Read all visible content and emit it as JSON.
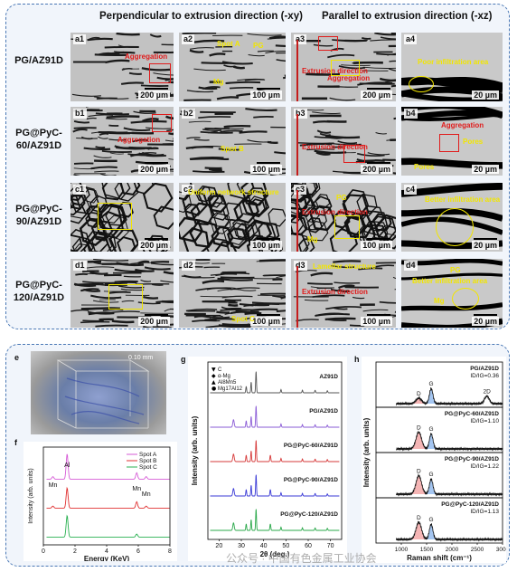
{
  "headers": {
    "left": "Perpendicular to extrusion direction (-xy)",
    "right": "Parallel to extrusion direction (-xz)"
  },
  "rows": [
    {
      "label": "PG/AZ91D"
    },
    {
      "label": "PG@PyC-60/AZ91D"
    },
    {
      "label": "PG@PyC-90/AZ91D"
    },
    {
      "label": "PG@PyC-120/AZ91D"
    }
  ],
  "tiles": [
    [
      "a1",
      "a2",
      "a3",
      "a4"
    ],
    [
      "b1",
      "b2",
      "b3",
      "b4"
    ],
    [
      "c1",
      "c2",
      "c3",
      "c4"
    ],
    [
      "d1",
      "d2",
      "d3",
      "d4"
    ]
  ],
  "scalebars": {
    "s200": "200 µm",
    "s100": "100 µm",
    "s20": "20 µm"
  },
  "annotations": {
    "aggregation": "Aggregation",
    "spot_a": "Spot A",
    "spot_b": "Spot B",
    "spot_c": "Spot C",
    "pg": "PG",
    "mg": "Mg",
    "extrusion_direction": "Extrusion direction",
    "poor_infiltration": "Poor infiltration area",
    "pores": "Pores",
    "uniform_network": "Uniform network structure",
    "better_infiltration": "Better infiltration area",
    "lamellar": "Lamellar structure"
  },
  "panel_e": {
    "label": "e",
    "scale": "0.10 mm"
  },
  "chart_f": {
    "label": "f",
    "chart_data": {
      "type": "line",
      "xlabel": "Energy (KeV)",
      "ylabel": "Intensity (arb. units)",
      "xlim": [
        0,
        8
      ],
      "xticks": [
        "0",
        "2",
        "4",
        "6",
        "8"
      ],
      "peak_labels": [
        "Mn",
        "Al",
        "Mn",
        "Mn"
      ],
      "series": [
        {
          "name": "Spot A",
          "color": "#d65bd6",
          "offset": 2,
          "peaks": [
            [
              0.6,
              0.1
            ],
            [
              1.5,
              1.0
            ],
            [
              5.9,
              0.25
            ],
            [
              6.5,
              0.1
            ]
          ]
        },
        {
          "name": "Spot B",
          "color": "#e03030",
          "offset": 1,
          "peaks": [
            [
              0.6,
              0.08
            ],
            [
              1.5,
              0.8
            ],
            [
              5.9,
              0.25
            ],
            [
              6.5,
              0.08
            ]
          ]
        },
        {
          "name": "Spot C",
          "color": "#28b050",
          "offset": 0,
          "peaks": [
            [
              1.5,
              0.85
            ],
            [
              5.9,
              0.12
            ]
          ]
        }
      ]
    }
  },
  "chart_g": {
    "label": "g",
    "chart_data": {
      "type": "line",
      "xlabel": "2θ (deg.)",
      "ylabel": "Intensity (arb. units)",
      "xlim": [
        15,
        75
      ],
      "xticks": [
        "20",
        "30",
        "40",
        "50",
        "60",
        "70"
      ],
      "legend": [
        "C",
        "α-Mg",
        "Al8Mn5",
        "Mg17Al12"
      ],
      "series": [
        {
          "name": "AZ91D",
          "color": "#555555"
        },
        {
          "name": "PG/AZ91D",
          "color": "#8a5bd6"
        },
        {
          "name": "PG@PyC-60/AZ91D",
          "color": "#d63a3a"
        },
        {
          "name": "PG@PyC-90/AZ91D",
          "color": "#3a3ad6"
        },
        {
          "name": "PG@PyC-120/AZ91D",
          "color": "#2aa84a"
        }
      ]
    }
  },
  "chart_h": {
    "label": "h",
    "chart_data": {
      "type": "line",
      "xlabel": "Raman shift (cm⁻¹)",
      "ylabel": "Intensity (arb. units)",
      "xlim": [
        500,
        3000
      ],
      "xticks": [
        "1000",
        "1500",
        "2000",
        "2500",
        "3000"
      ],
      "series": [
        {
          "name": "PG/AZ91D",
          "ratio": "ID/IG=0.36",
          "D": 0.36,
          "labels": [
            "D",
            "G",
            "2D"
          ]
        },
        {
          "name": "PG@PyC-60/AZ91D",
          "ratio": "ID/IG=1.10",
          "D": 1.1,
          "labels": [
            "D",
            "G"
          ]
        },
        {
          "name": "PG@PyC-90/AZ91D",
          "ratio": "ID/IG=1.22",
          "D": 1.22,
          "labels": [
            "D",
            "G"
          ]
        },
        {
          "name": "PG@PyC-120/AZ91D",
          "ratio": "ID/IG=1.13",
          "D": 1.13,
          "labels": [
            "D",
            "G"
          ]
        }
      ]
    }
  },
  "watermark": "公众号 · 中国有色金属工业协会",
  "colors": {
    "red": "#e01b1b",
    "yellow": "#f2e600",
    "border": "#4a78b5"
  }
}
